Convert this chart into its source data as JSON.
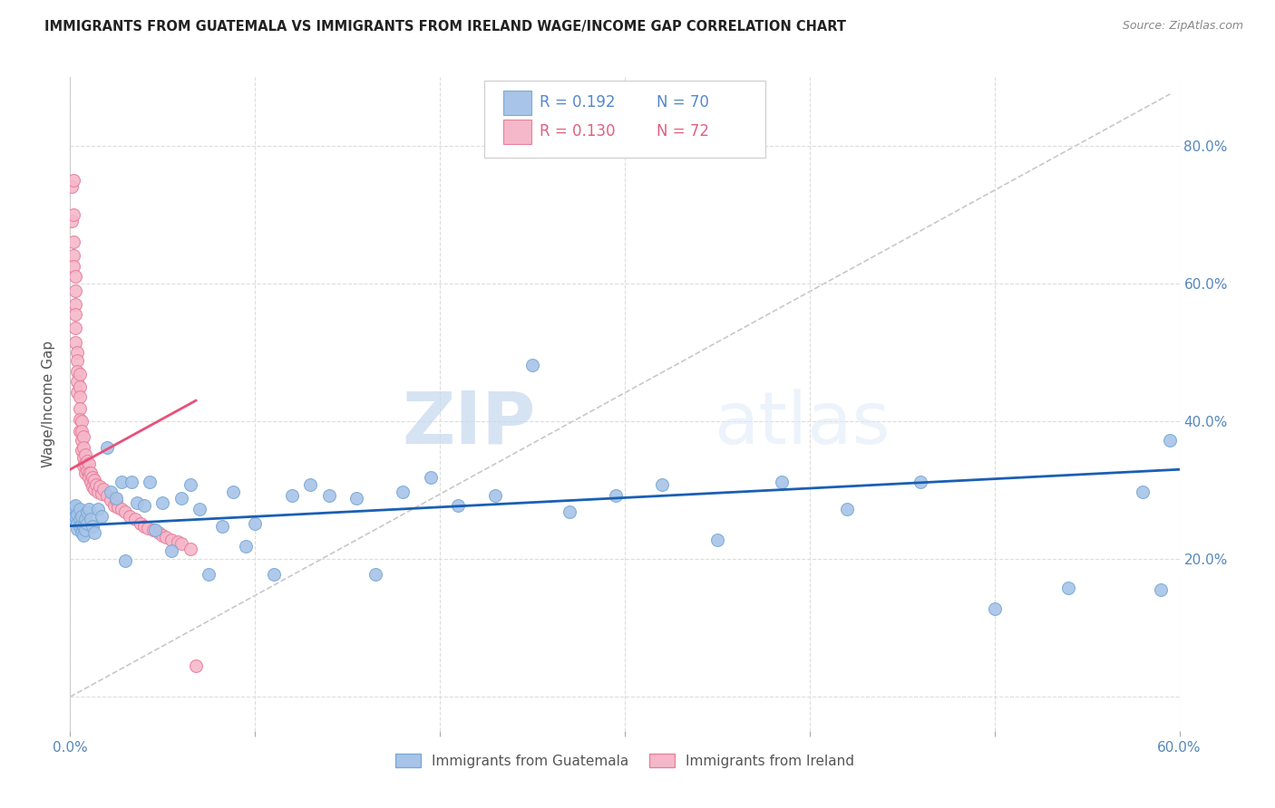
{
  "title": "IMMIGRANTS FROM GUATEMALA VS IMMIGRANTS FROM IRELAND WAGE/INCOME GAP CORRELATION CHART",
  "source": "Source: ZipAtlas.com",
  "ylabel": "Wage/Income Gap",
  "xlim": [
    0.0,
    0.6
  ],
  "ylim": [
    -0.05,
    0.9
  ],
  "yticks_right": [
    0.2,
    0.4,
    0.6,
    0.8
  ],
  "ytick_right_labels": [
    "20.0%",
    "40.0%",
    "60.0%",
    "80.0%"
  ],
  "guatemala_color": "#a8c4e8",
  "ireland_color": "#f5b8cb",
  "guatemala_edge": "#7aaad4",
  "ireland_edge": "#e8809a",
  "trendline_blue": "#1a5fb4",
  "trendline_pink": "#e8507a",
  "ref_line_color": "#c8c8c8",
  "legend_label_blue": "Immigrants from Guatemala",
  "legend_label_pink": "Immigrants from Ireland",
  "watermark_zip": "ZIP",
  "watermark_atlas": "atlas",
  "guatemala_x": [
    0.001,
    0.002,
    0.002,
    0.003,
    0.003,
    0.003,
    0.004,
    0.004,
    0.004,
    0.005,
    0.005,
    0.005,
    0.006,
    0.006,
    0.006,
    0.007,
    0.007,
    0.008,
    0.008,
    0.009,
    0.009,
    0.01,
    0.011,
    0.012,
    0.013,
    0.015,
    0.017,
    0.02,
    0.022,
    0.025,
    0.028,
    0.03,
    0.033,
    0.036,
    0.04,
    0.043,
    0.046,
    0.05,
    0.055,
    0.06,
    0.065,
    0.07,
    0.075,
    0.082,
    0.088,
    0.095,
    0.1,
    0.11,
    0.12,
    0.13,
    0.14,
    0.155,
    0.165,
    0.18,
    0.195,
    0.21,
    0.23,
    0.25,
    0.27,
    0.295,
    0.32,
    0.35,
    0.385,
    0.42,
    0.46,
    0.5,
    0.54,
    0.58,
    0.59,
    0.595
  ],
  "guatemala_y": [
    0.26,
    0.268,
    0.275,
    0.255,
    0.262,
    0.278,
    0.265,
    0.252,
    0.244,
    0.258,
    0.248,
    0.272,
    0.25,
    0.238,
    0.262,
    0.248,
    0.235,
    0.242,
    0.258,
    0.252,
    0.268,
    0.272,
    0.258,
    0.248,
    0.238,
    0.272,
    0.262,
    0.362,
    0.298,
    0.288,
    0.312,
    0.198,
    0.312,
    0.282,
    0.278,
    0.312,
    0.242,
    0.282,
    0.212,
    0.288,
    0.308,
    0.272,
    0.178,
    0.248,
    0.298,
    0.218,
    0.252,
    0.178,
    0.292,
    0.308,
    0.292,
    0.288,
    0.178,
    0.298,
    0.318,
    0.278,
    0.292,
    0.482,
    0.268,
    0.292,
    0.308,
    0.228,
    0.312,
    0.272,
    0.312,
    0.128,
    0.158,
    0.298,
    0.155,
    0.372
  ],
  "ireland_x": [
    0.001,
    0.001,
    0.002,
    0.002,
    0.002,
    0.002,
    0.002,
    0.003,
    0.003,
    0.003,
    0.003,
    0.003,
    0.003,
    0.004,
    0.004,
    0.004,
    0.004,
    0.004,
    0.005,
    0.005,
    0.005,
    0.005,
    0.005,
    0.005,
    0.006,
    0.006,
    0.006,
    0.006,
    0.007,
    0.007,
    0.007,
    0.007,
    0.008,
    0.008,
    0.008,
    0.009,
    0.009,
    0.01,
    0.01,
    0.01,
    0.011,
    0.011,
    0.012,
    0.012,
    0.013,
    0.013,
    0.014,
    0.015,
    0.016,
    0.017,
    0.018,
    0.02,
    0.022,
    0.024,
    0.025,
    0.026,
    0.028,
    0.03,
    0.032,
    0.035,
    0.038,
    0.04,
    0.042,
    0.045,
    0.048,
    0.05,
    0.052,
    0.055,
    0.058,
    0.06,
    0.065,
    0.068
  ],
  "ireland_y": [
    0.74,
    0.69,
    0.75,
    0.7,
    0.66,
    0.64,
    0.625,
    0.61,
    0.59,
    0.57,
    0.555,
    0.535,
    0.515,
    0.5,
    0.488,
    0.472,
    0.458,
    0.442,
    0.468,
    0.45,
    0.435,
    0.418,
    0.402,
    0.385,
    0.4,
    0.385,
    0.372,
    0.358,
    0.378,
    0.362,
    0.348,
    0.335,
    0.352,
    0.338,
    0.325,
    0.342,
    0.328,
    0.338,
    0.325,
    0.318,
    0.325,
    0.312,
    0.318,
    0.305,
    0.315,
    0.302,
    0.308,
    0.298,
    0.305,
    0.295,
    0.302,
    0.292,
    0.285,
    0.278,
    0.285,
    0.275,
    0.272,
    0.268,
    0.262,
    0.258,
    0.252,
    0.248,
    0.245,
    0.242,
    0.238,
    0.235,
    0.232,
    0.228,
    0.225,
    0.222,
    0.215,
    0.045
  ],
  "blue_trend_x0": 0.0,
  "blue_trend_y0": 0.248,
  "blue_trend_x1": 0.6,
  "blue_trend_y1": 0.33,
  "pink_trend_x0": 0.0,
  "pink_trend_y0": 0.33,
  "pink_trend_x1": 0.068,
  "pink_trend_y1": 0.43,
  "ref_line_x0": 0.0,
  "ref_line_y0": 0.0,
  "ref_line_x1": 0.595,
  "ref_line_y1": 0.875
}
